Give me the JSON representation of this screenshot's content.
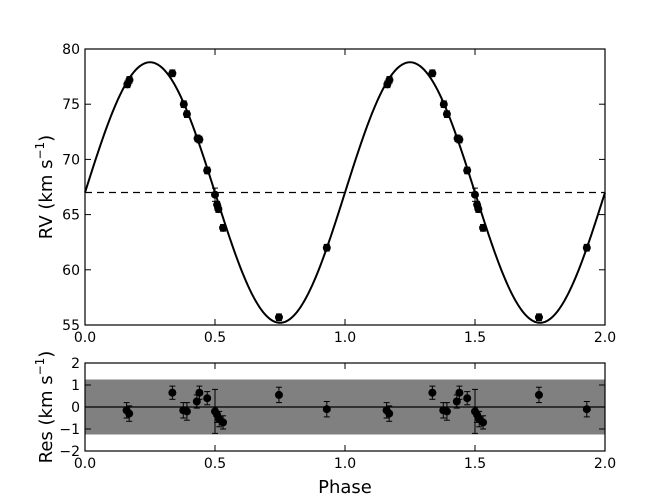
{
  "chart_data": [
    {
      "type": "scatter",
      "panel": "top",
      "title": "",
      "xlabel": "",
      "ylabel": "RV (km s",
      "ylabel_sup": "−1",
      "ylabel_close": ")",
      "xlim": [
        0.0,
        2.0
      ],
      "ylim": [
        55,
        80
      ],
      "xticks": [
        "0.0",
        "0.5",
        "1.0",
        "1.5",
        "2.0"
      ],
      "yticks": [
        "55",
        "60",
        "65",
        "70",
        "75",
        "80"
      ],
      "model": {
        "style": "solid sinusoid",
        "gamma": 67.0,
        "amplitude": 11.8,
        "peak_phase": 0.25,
        "color": "#000000"
      },
      "systemic_line": {
        "style": "dashed",
        "y": 67.0
      },
      "series": [
        {
          "points": [
            {
              "x": 0.163,
              "y": 76.8,
              "err": 0.3
            },
            {
              "x": 0.171,
              "y": 77.2,
              "err": 0.3
            },
            {
              "x": 0.336,
              "y": 77.8,
              "err": 0.3
            },
            {
              "x": 0.38,
              "y": 75.0,
              "err": 0.3
            },
            {
              "x": 0.392,
              "y": 74.1,
              "err": 0.3
            },
            {
              "x": 0.433,
              "y": 71.9,
              "err": 0.3
            },
            {
              "x": 0.44,
              "y": 71.8,
              "err": 0.3
            },
            {
              "x": 0.47,
              "y": 69.0,
              "err": 0.3
            },
            {
              "x": 0.5,
              "y": 66.8,
              "err": 0.6
            },
            {
              "x": 0.508,
              "y": 65.9,
              "err": 0.3
            },
            {
              "x": 0.513,
              "y": 65.5,
              "err": 0.3
            },
            {
              "x": 0.531,
              "y": 63.8,
              "err": 0.3
            },
            {
              "x": 0.746,
              "y": 55.7,
              "err": 0.3
            },
            {
              "x": 0.93,
              "y": 62.0,
              "err": 0.3
            },
            {
              "x": 1.163,
              "y": 76.8,
              "err": 0.3
            },
            {
              "x": 1.171,
              "y": 77.2,
              "err": 0.3
            },
            {
              "x": 1.336,
              "y": 77.8,
              "err": 0.3
            },
            {
              "x": 1.38,
              "y": 75.0,
              "err": 0.3
            },
            {
              "x": 1.392,
              "y": 74.1,
              "err": 0.3
            },
            {
              "x": 1.433,
              "y": 71.9,
              "err": 0.3
            },
            {
              "x": 1.44,
              "y": 71.8,
              "err": 0.3
            },
            {
              "x": 1.47,
              "y": 69.0,
              "err": 0.3
            },
            {
              "x": 1.5,
              "y": 66.8,
              "err": 0.6
            },
            {
              "x": 1.508,
              "y": 65.9,
              "err": 0.3
            },
            {
              "x": 1.513,
              "y": 65.5,
              "err": 0.3
            },
            {
              "x": 1.531,
              "y": 63.8,
              "err": 0.3
            },
            {
              "x": 1.746,
              "y": 55.7,
              "err": 0.3
            },
            {
              "x": 1.93,
              "y": 62.0,
              "err": 0.3
            }
          ]
        }
      ]
    },
    {
      "type": "scatter",
      "panel": "bottom",
      "title": "",
      "xlabel": "Phase",
      "ylabel": "Res (km s",
      "ylabel_sup": "−1",
      "ylabel_close": ")",
      "xlim": [
        0.0,
        2.0
      ],
      "ylim": [
        -2,
        2
      ],
      "xticks": [
        "0.0",
        "0.5",
        "1.0",
        "1.5",
        "2.0"
      ],
      "yticks": [
        "−2",
        "−1",
        "0",
        "1",
        "2"
      ],
      "band": {
        "lower": -1.25,
        "upper": 1.25,
        "color": "#808080"
      },
      "zero_line": 0,
      "series": [
        {
          "points": [
            {
              "x": 0.16,
              "y": -0.15,
              "err": 0.35
            },
            {
              "x": 0.17,
              "y": -0.3,
              "err": 0.35
            },
            {
              "x": 0.336,
              "y": 0.65,
              "err": 0.3
            },
            {
              "x": 0.378,
              "y": -0.15,
              "err": 0.35
            },
            {
              "x": 0.392,
              "y": -0.2,
              "err": 0.4
            },
            {
              "x": 0.43,
              "y": 0.25,
              "err": 0.3
            },
            {
              "x": 0.44,
              "y": 0.65,
              "err": 0.3
            },
            {
              "x": 0.47,
              "y": 0.4,
              "err": 0.3
            },
            {
              "x": 0.5,
              "y": -0.2,
              "err": 1.0
            },
            {
              "x": 0.508,
              "y": -0.35,
              "err": 0.35
            },
            {
              "x": 0.516,
              "y": -0.55,
              "err": 0.35
            },
            {
              "x": 0.531,
              "y": -0.7,
              "err": 0.3
            },
            {
              "x": 0.746,
              "y": 0.55,
              "err": 0.35
            },
            {
              "x": 0.93,
              "y": -0.1,
              "err": 0.35
            },
            {
              "x": 1.16,
              "y": -0.15,
              "err": 0.35
            },
            {
              "x": 1.17,
              "y": -0.3,
              "err": 0.35
            },
            {
              "x": 1.336,
              "y": 0.65,
              "err": 0.3
            },
            {
              "x": 1.378,
              "y": -0.15,
              "err": 0.35
            },
            {
              "x": 1.392,
              "y": -0.2,
              "err": 0.4
            },
            {
              "x": 1.43,
              "y": 0.25,
              "err": 0.3
            },
            {
              "x": 1.44,
              "y": 0.65,
              "err": 0.3
            },
            {
              "x": 1.47,
              "y": 0.4,
              "err": 0.3
            },
            {
              "x": 1.5,
              "y": -0.2,
              "err": 1.0
            },
            {
              "x": 1.508,
              "y": -0.35,
              "err": 0.35
            },
            {
              "x": 1.516,
              "y": -0.55,
              "err": 0.35
            },
            {
              "x": 1.531,
              "y": -0.7,
              "err": 0.3
            },
            {
              "x": 1.746,
              "y": 0.55,
              "err": 0.35
            },
            {
              "x": 1.93,
              "y": -0.1,
              "err": 0.35
            }
          ]
        }
      ]
    }
  ]
}
